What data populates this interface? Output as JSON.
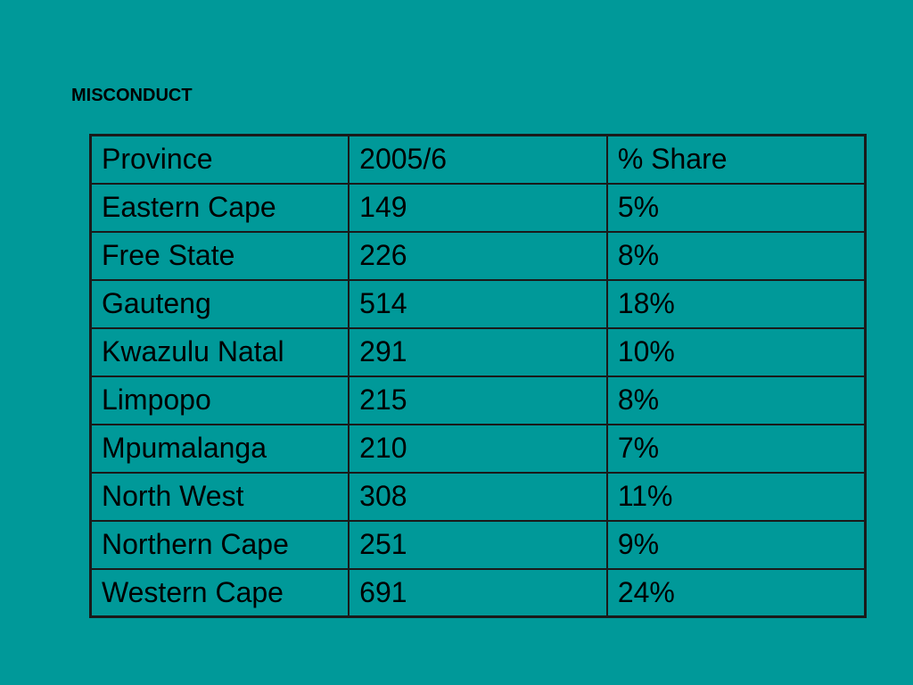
{
  "title": "MISCONDUCT",
  "table": {
    "header": [
      "Province",
      "2005/6",
      "% Share"
    ],
    "rows": [
      [
        "Eastern Cape",
        "149",
        "5%"
      ],
      [
        "Free State",
        "226",
        "8%"
      ],
      [
        "Gauteng",
        "514",
        "18%"
      ],
      [
        "Kwazulu Natal",
        "291",
        "10%"
      ],
      [
        "Limpopo",
        "215",
        "8%"
      ],
      [
        "Mpumalanga",
        "210",
        "7%"
      ],
      [
        "North West",
        "308",
        "11%"
      ],
      [
        "Northern Cape",
        "251",
        "9%"
      ],
      [
        "Western Cape",
        "691",
        "24%"
      ]
    ]
  }
}
